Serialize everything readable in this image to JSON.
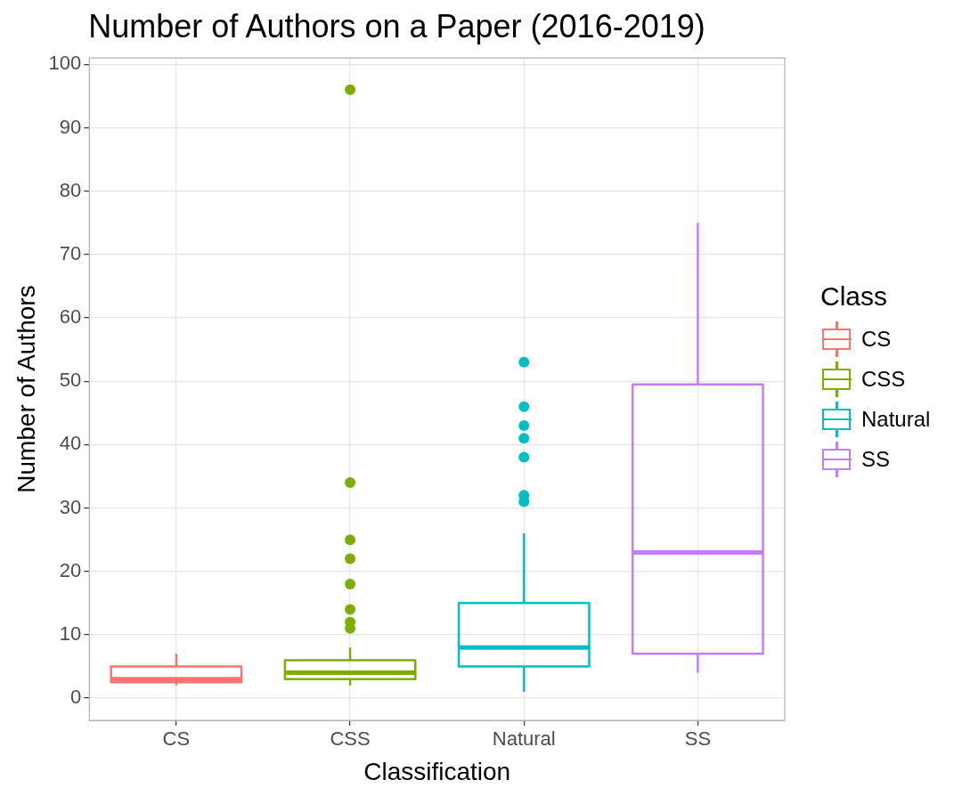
{
  "chart_data": {
    "type": "box",
    "title": "Number of Authors on a Paper (2016-2019)",
    "xlabel": "Classification",
    "ylabel": "Number of Authors",
    "legend_title": "Class",
    "legend": "right",
    "grid": true,
    "categories": [
      "CS",
      "CSS",
      "Natural",
      "SS"
    ],
    "series": [
      {
        "name": "CS",
        "color": "#f8766d",
        "boxes": [
          {
            "low": 2,
            "q1": 2.5,
            "median": 3,
            "q3": 5,
            "high": 7
          },
          null,
          null,
          null
        ]
      },
      {
        "name": "CSS",
        "color": "#7cae00",
        "boxes": [
          null,
          {
            "low": 2,
            "q1": 3,
            "median": 4,
            "q3": 6,
            "high": 8,
            "outliers": [
              11,
              12,
              14,
              18,
              22,
              25,
              34,
              96
            ]
          },
          null,
          null
        ]
      },
      {
        "name": "Natural",
        "color": "#00bfc4",
        "boxes": [
          null,
          null,
          {
            "low": 1,
            "q1": 5,
            "median": 8,
            "q3": 15,
            "high": 26,
            "outliers": [
              31,
              32,
              38,
              41,
              43,
              46,
              53
            ]
          },
          null
        ]
      },
      {
        "name": "SS",
        "color": "#c77cff",
        "boxes": [
          null,
          null,
          null,
          {
            "low": 4,
            "q1": 7,
            "median": 23,
            "q3": 49.5,
            "high": 75
          }
        ]
      }
    ],
    "ylim": [
      -3.5,
      101
    ],
    "yticks": [
      0,
      10,
      20,
      30,
      40,
      50,
      60,
      70,
      80,
      90,
      100
    ]
  }
}
